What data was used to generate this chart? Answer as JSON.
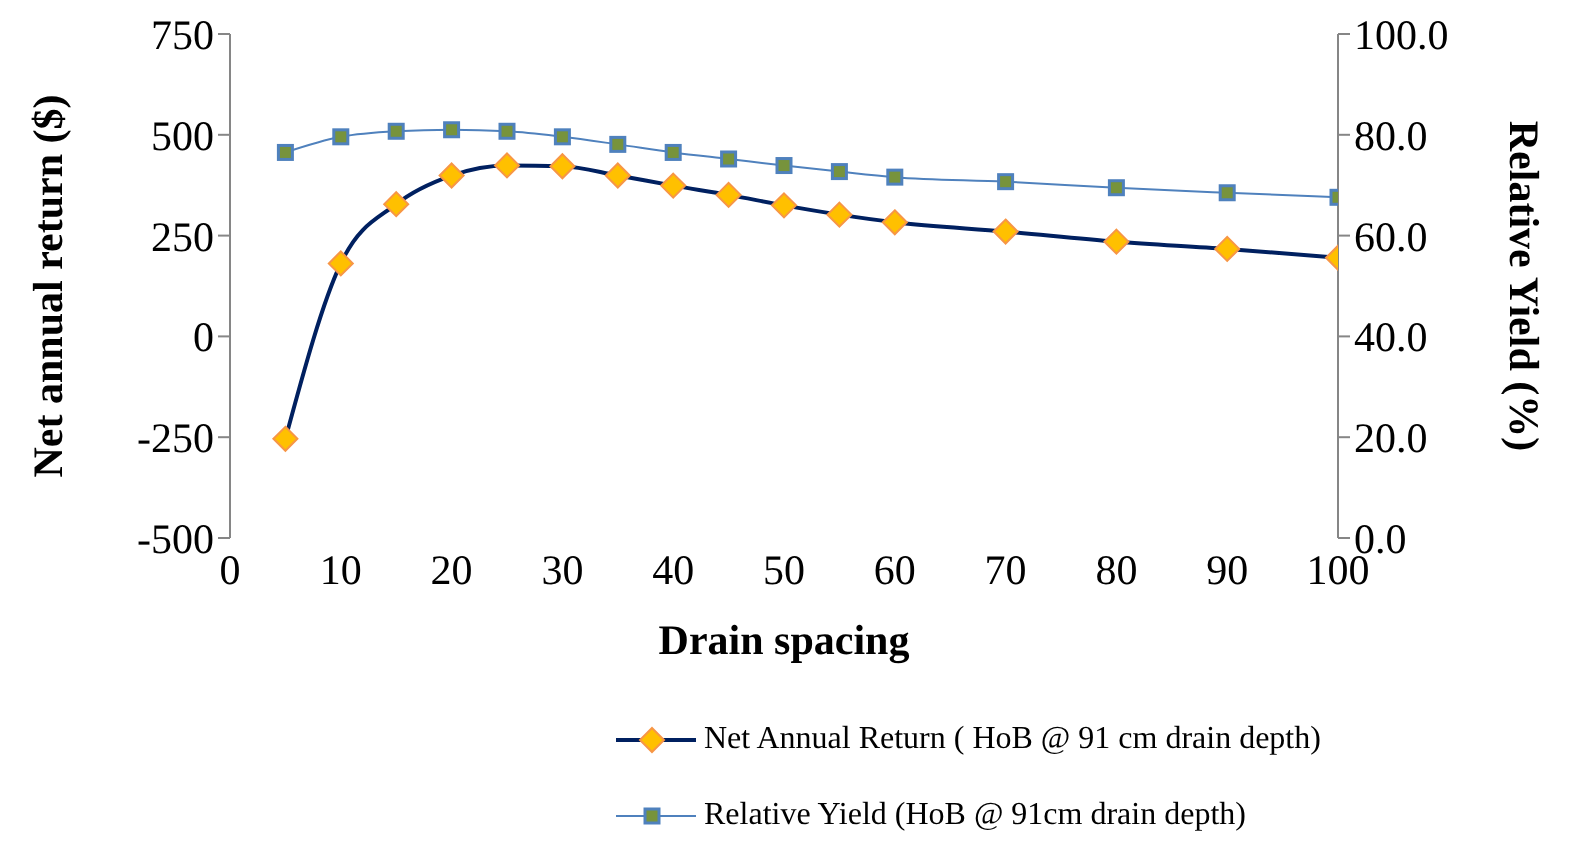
{
  "chart_data": {
    "type": "line",
    "xlabel": "Drain spacing",
    "ylabel": "Net annual return ($)",
    "y2label": "Relative Yield (%)",
    "x": [
      5,
      10,
      15,
      20,
      25,
      30,
      35,
      40,
      45,
      50,
      55,
      60,
      70,
      80,
      90,
      100
    ],
    "series": [
      {
        "name": "Net Annual Return ( HoB @ 91 cm drain depth)",
        "color": "#002060",
        "marker": "diamond",
        "values": [
          -254,
          181,
          328,
          399,
          424,
          422,
          399,
          374,
          351,
          325,
          302,
          283,
          260,
          235,
          217,
          195
        ]
      },
      {
        "name": "Relative Yield (HoB @ 91cm drain depth)",
        "color": "#4f81bd",
        "marker": "square",
        "axis": "y2",
        "values": [
          76.5,
          79.6,
          80.7,
          81.0,
          80.7,
          79.6,
          78.1,
          76.5,
          75.2,
          73.9,
          72.7,
          71.6,
          70.7,
          69.5,
          68.5,
          67.6
        ]
      }
    ],
    "xlim": [
      0,
      100
    ],
    "xticks": [
      0,
      10,
      20,
      30,
      40,
      50,
      60,
      70,
      80,
      90,
      100
    ],
    "ylim": [
      -500,
      750
    ],
    "yticks": [
      -500,
      -250,
      0,
      250,
      500,
      750
    ],
    "y2lim": [
      0,
      100
    ],
    "y2ticks": [
      {
        "value": 0,
        "label": "0.0"
      },
      {
        "value": 20,
        "label": "20.0"
      },
      {
        "value": 40,
        "label": "40.0"
      },
      {
        "value": 60,
        "label": "60.0"
      },
      {
        "value": 80,
        "label": "80.0"
      },
      {
        "value": 100,
        "label": "100.0"
      }
    ],
    "grid": false,
    "legend": "bottom",
    "line_style": "solid"
  }
}
